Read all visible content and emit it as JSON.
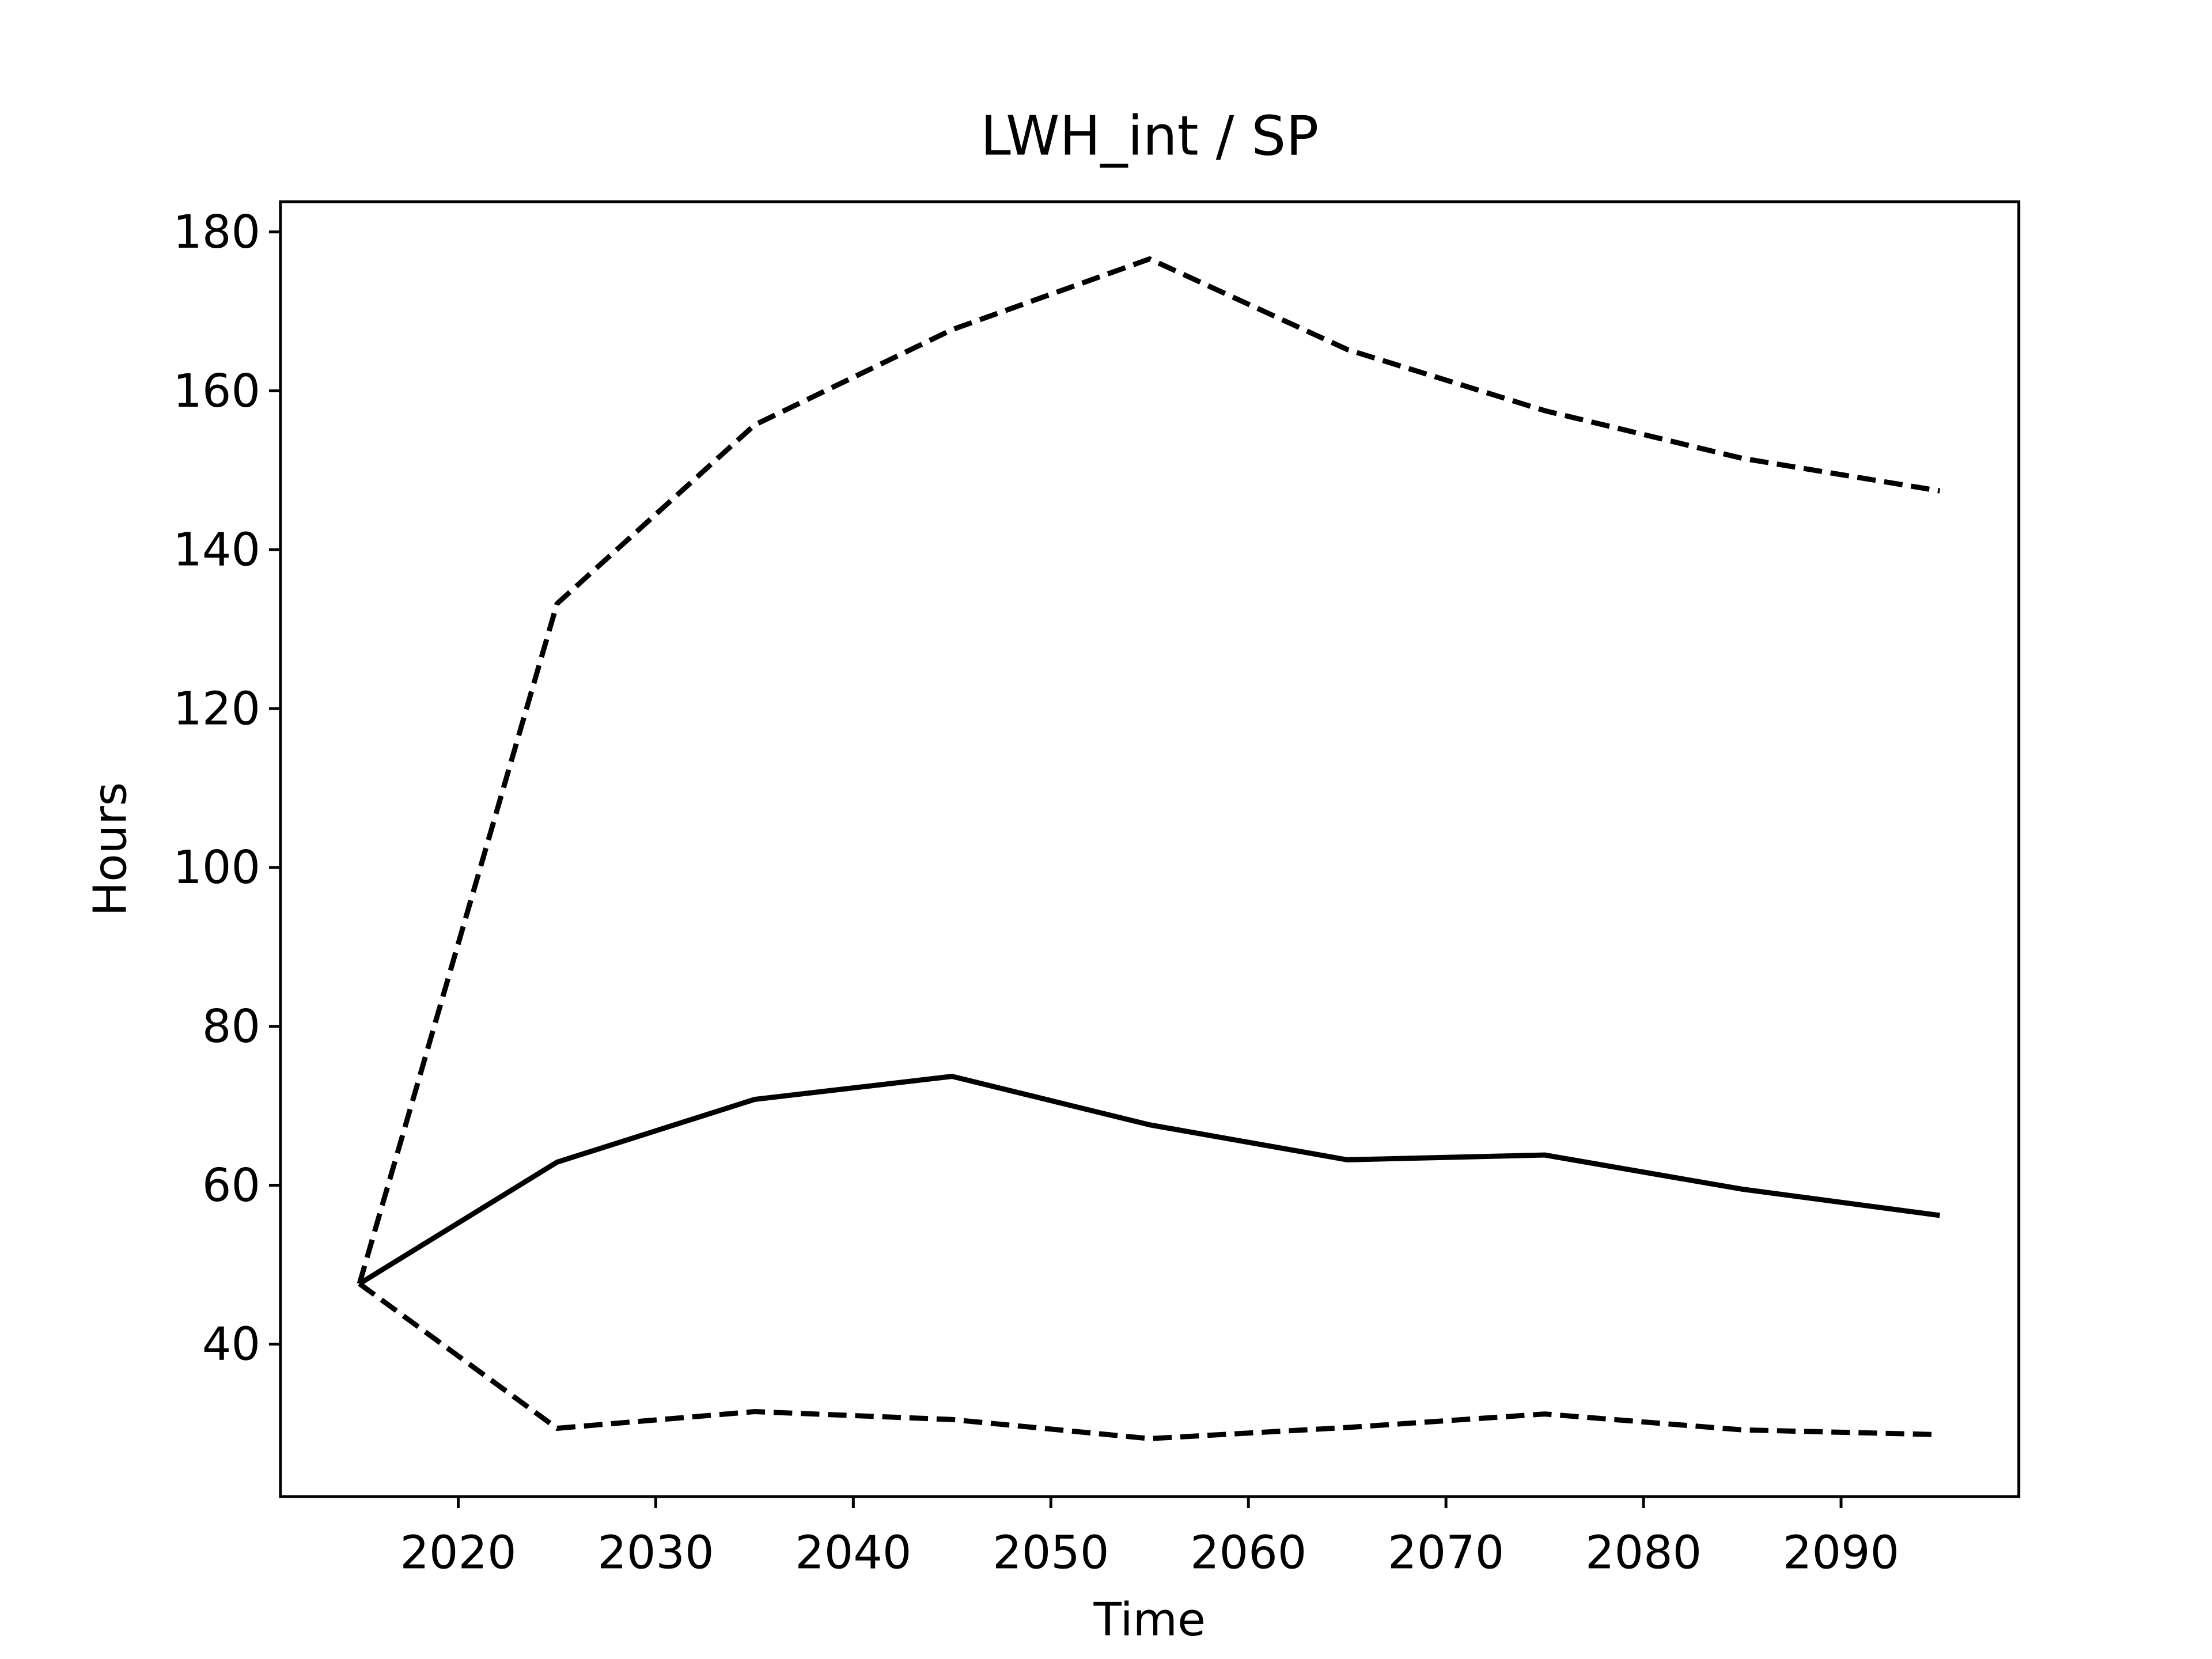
{
  "chart_data": {
    "type": "line",
    "title": "LWH_int / SP",
    "xlabel": "Time",
    "ylabel": "Hours",
    "x": [
      2015,
      2025,
      2035,
      2045,
      2055,
      2065,
      2075,
      2085,
      2095
    ],
    "series": [
      {
        "color": "#000000",
        "linestyle": "solid",
        "values": [
          47.6,
          62.9,
          70.8,
          73.7,
          67.6,
          63.2,
          63.8,
          59.5,
          56.2
        ]
      },
      {
        "color": "#000000",
        "linestyle": "dashed",
        "values": [
          47.6,
          133.2,
          155.7,
          167.7,
          176.6,
          165.2,
          157.5,
          151.5,
          147.4
        ]
      },
      {
        "color": "#000000",
        "linestyle": "dashed",
        "values": [
          47.6,
          29.4,
          31.5,
          30.5,
          28.1,
          29.5,
          31.2,
          29.2,
          28.6
        ]
      }
    ],
    "xlim": [
      2011,
      2099
    ],
    "xticks": [
      2020,
      2030,
      2040,
      2050,
      2060,
      2070,
      2080,
      2090
    ],
    "ylim": [
      20.8,
      183.8
    ],
    "yticks": [
      40,
      60,
      80,
      100,
      120,
      140,
      160,
      180
    ],
    "grid": false
  }
}
